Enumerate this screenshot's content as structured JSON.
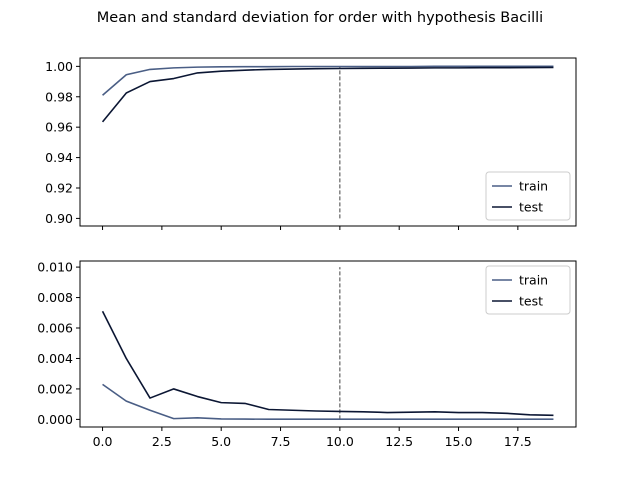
{
  "figure_title": "Mean and standard deviation for order with hypothesis Bacilli",
  "chart_data": [
    {
      "type": "line",
      "title": "",
      "xlabel": "",
      "ylabel": "",
      "xlim": [
        -0.95,
        19.95
      ],
      "ylim": [
        0.895,
        1.0055
      ],
      "x": [
        0,
        1,
        2,
        3,
        4,
        5,
        6,
        7,
        8,
        9,
        10,
        11,
        12,
        13,
        14,
        15,
        16,
        17,
        18,
        19
      ],
      "xticks": [
        0.0,
        2.5,
        5.0,
        7.5,
        10.0,
        12.5,
        15.0,
        17.5
      ],
      "xtick_labels_shown": false,
      "yticks": [
        0.9,
        0.92,
        0.94,
        0.96,
        0.98,
        1.0
      ],
      "ytick_labels": [
        "0.90",
        "0.92",
        "0.94",
        "0.96",
        "0.98",
        "1.00"
      ],
      "vline": {
        "x": 10,
        "y_range": [
          0.9,
          1.0
        ],
        "style": "dashed"
      },
      "legend": {
        "location": "lower right"
      },
      "series": [
        {
          "name": "train",
          "color": "#4a5e85",
          "values": [
            0.981,
            0.9945,
            0.998,
            0.999,
            0.9995,
            0.9997,
            0.9998,
            0.9998,
            0.9999,
            0.9999,
            0.9999,
            0.9999,
            0.9999,
            0.9999,
            1.0,
            1.0,
            1.0,
            1.0,
            1.0,
            1.0
          ]
        },
        {
          "name": "test",
          "color": "#0b1633",
          "values": [
            0.9635,
            0.9825,
            0.99,
            0.992,
            0.9957,
            0.9968,
            0.9975,
            0.998,
            0.9982,
            0.9985,
            0.9986,
            0.9987,
            0.9988,
            0.9989,
            0.999,
            0.999,
            0.9991,
            0.9991,
            0.9992,
            0.9993
          ]
        }
      ]
    },
    {
      "type": "line",
      "title": "",
      "xlabel": "",
      "ylabel": "",
      "xlim": [
        -0.95,
        19.95
      ],
      "ylim": [
        -0.0005,
        0.0104
      ],
      "x": [
        0,
        1,
        2,
        3,
        4,
        5,
        6,
        7,
        8,
        9,
        10,
        11,
        12,
        13,
        14,
        15,
        16,
        17,
        18,
        19
      ],
      "xticks": [
        0.0,
        2.5,
        5.0,
        7.5,
        10.0,
        12.5,
        15.0,
        17.5
      ],
      "xtick_labels": [
        "0.0",
        "2.5",
        "5.0",
        "7.5",
        "10.0",
        "12.5",
        "15.0",
        "17.5"
      ],
      "xtick_labels_shown": true,
      "yticks": [
        0.0,
        0.002,
        0.004,
        0.006,
        0.008,
        0.01
      ],
      "ytick_labels": [
        "0.000",
        "0.002",
        "0.004",
        "0.006",
        "0.008",
        "0.010"
      ],
      "vline": {
        "x": 10,
        "y_range": [
          0.0,
          0.01
        ],
        "style": "dashed"
      },
      "legend": {
        "location": "upper right"
      },
      "series": [
        {
          "name": "train",
          "color": "#4a5e85",
          "values": [
            0.0023,
            0.0012,
            0.0006,
            5e-05,
            0.0001,
            3e-05,
            2e-05,
            1e-05,
            1e-05,
            1e-05,
            1e-05,
            1e-05,
            1e-05,
            1e-05,
            1e-05,
            1e-05,
            1e-05,
            1e-05,
            1e-05,
            1e-05
          ]
        },
        {
          "name": "test",
          "color": "#0b1633",
          "values": [
            0.0071,
            0.004,
            0.0014,
            0.002,
            0.0015,
            0.0011,
            0.00105,
            0.00065,
            0.0006,
            0.00055,
            0.00052,
            0.0005,
            0.00045,
            0.00047,
            0.0005,
            0.00045,
            0.00045,
            0.0004,
            0.0003,
            0.00027
          ]
        }
      ]
    }
  ]
}
